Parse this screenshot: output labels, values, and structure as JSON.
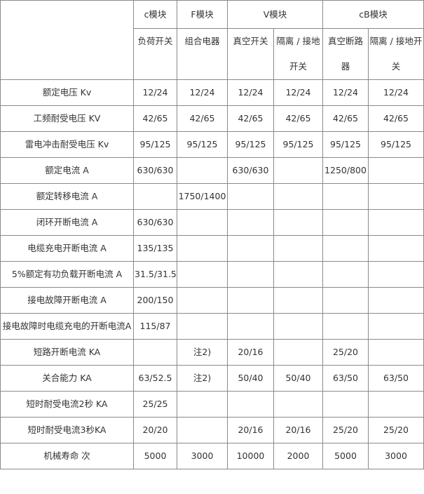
{
  "modules": [
    "c模块",
    "F模块",
    "V模块",
    "cB模块"
  ],
  "subheaders": [
    "负荷开关",
    "组合电器",
    "真空开关",
    "隔离 / 接地开关",
    "真空断路器",
    "隔离 / 接地开关"
  ],
  "rows": [
    {
      "label": "额定电压 Kv",
      "values": [
        "12/24",
        "12/24",
        "12/24",
        "12/24",
        "12/24",
        "12/24"
      ]
    },
    {
      "label": "工频耐受电压 KV",
      "values": [
        "42/65",
        "42/65",
        "42/65",
        "42/65",
        "42/65",
        "42/65"
      ]
    },
    {
      "label": "雷电冲击耐受电压 Kv",
      "values": [
        "95/125",
        "95/125",
        "95/125",
        "95/125",
        "95/125",
        "95/125"
      ]
    },
    {
      "label": "额定电流 A",
      "values": [
        "630/630",
        "",
        "630/630",
        "",
        "1250/800",
        ""
      ]
    },
    {
      "label": "额定转移电流 A",
      "values": [
        "",
        "1750/1400",
        "",
        "",
        "",
        ""
      ]
    },
    {
      "label": "闭环开断电流 A",
      "values": [
        "630/630",
        "",
        "",
        "",
        "",
        ""
      ]
    },
    {
      "label": "电缆充电开断电流 A",
      "values": [
        "135/135",
        "",
        "",
        "",
        "",
        ""
      ]
    },
    {
      "label": "5%额定有功负载开断电流 A",
      "values": [
        "31.5/31.5",
        "",
        "",
        "",
        "",
        ""
      ]
    },
    {
      "label": "接电故障开断电流 A",
      "values": [
        "200/150",
        "",
        "",
        "",
        "",
        ""
      ]
    },
    {
      "label": "接电故障时电缆充电的开断电流A",
      "values": [
        "115/87",
        "",
        "",
        "",
        "",
        ""
      ]
    },
    {
      "label": "短路开断电流 KA",
      "values": [
        "",
        "注2)",
        "20/16",
        "",
        "25/20",
        ""
      ]
    },
    {
      "label": "关合能力 KA",
      "values": [
        "63/52.5",
        "注2)",
        "50/40",
        "50/40",
        "63/50",
        "63/50"
      ]
    },
    {
      "label": "短时耐受电流2秒 KA",
      "values": [
        "25/25",
        "",
        "",
        "",
        "",
        ""
      ]
    },
    {
      "label": "短时耐受电流3秒KA",
      "values": [
        "20/20",
        "",
        "20/16",
        "20/16",
        "25/20",
        "25/20"
      ]
    },
    {
      "label": "机械寿命 次",
      "values": [
        "5000",
        "3000",
        "10000",
        "2000",
        "5000",
        "3000"
      ]
    }
  ]
}
